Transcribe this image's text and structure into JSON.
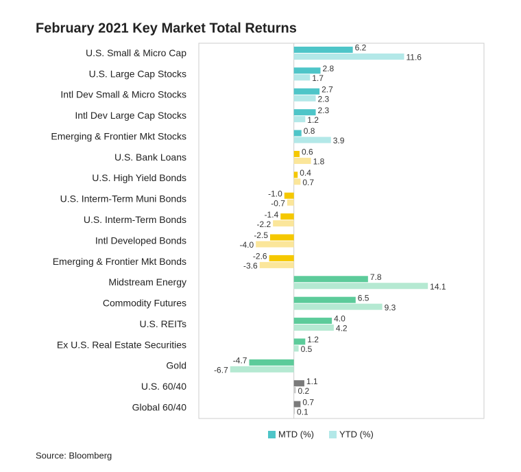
{
  "chart_data": {
    "type": "hbar",
    "title": "February 2021 Key Market Total Returns",
    "categories": [
      "U.S. Small & Micro Cap",
      "U.S. Large Cap Stocks",
      "Intl Dev Small & Micro Stocks",
      "Intl Dev Large Cap Stocks",
      "Emerging & Frontier Mkt Stocks",
      "U.S. Bank Loans",
      "U.S. High Yield Bonds",
      "U.S. Interm-Term Muni Bonds",
      "U.S. Interm-Term Bonds",
      "Intl Developed Bonds",
      "Emerging & Frontier Mkt Bonds",
      "Midstream Energy",
      "Commodity Futures",
      "U.S. REITs",
      "Ex U.S. Real Estate Securities",
      "Gold",
      "U.S. 60/40",
      "Global 60/40"
    ],
    "series": [
      {
        "name": "MTD (%)",
        "color": "#4ec5c8",
        "values": [
          6.2,
          2.8,
          2.7,
          2.3,
          0.8,
          0.6,
          0.4,
          -1.0,
          -1.4,
          -2.5,
          -2.6,
          7.8,
          6.5,
          4.0,
          1.2,
          -4.7,
          1.1,
          0.7
        ],
        "value_labels": [
          "6.2",
          "2.8",
          "2.7",
          "2.3",
          "0.8",
          "0.6",
          "0.4",
          "-1.0",
          "-1.4",
          "-2.5",
          "-2.6",
          "7.8",
          "6.5",
          "4.0",
          "1.2",
          "-4.7",
          "1.1",
          "0.7"
        ],
        "colors": [
          "#4ec5c8",
          "#4ec5c8",
          "#4ec5c8",
          "#4ec5c8",
          "#4ec5c8",
          "#f5c800",
          "#f5c800",
          "#f5c800",
          "#f5c800",
          "#f5c800",
          "#f5c800",
          "#5ccb9a",
          "#5ccb9a",
          "#5ccb9a",
          "#5ccb9a",
          "#5ccb9a",
          "#7a7a7a",
          "#7a7a7a"
        ]
      },
      {
        "name": "YTD (%)",
        "color": "#b3e8e8",
        "values": [
          11.6,
          1.7,
          2.3,
          1.2,
          3.9,
          1.8,
          0.7,
          -0.7,
          -2.2,
          -4.0,
          -3.6,
          14.1,
          9.3,
          4.2,
          0.5,
          -6.7,
          0.2,
          0.1
        ],
        "value_labels": [
          "11.6",
          "1.7",
          "2.3",
          "1.2",
          "3.9",
          "1.8",
          "0.7",
          "-0.7",
          "-2.2",
          "-4.0",
          "-3.6",
          "14.1",
          "9.3",
          "4.2",
          "0.5",
          "-6.7",
          "0.2",
          "0.1"
        ],
        "colors": [
          "#b3e8e8",
          "#b3e8e8",
          "#b3e8e8",
          "#b3e8e8",
          "#b3e8e8",
          "#fbe69a",
          "#fbe69a",
          "#fbe69a",
          "#fbe69a",
          "#fbe69a",
          "#fbe69a",
          "#b5e9d2",
          "#b5e9d2",
          "#b5e9d2",
          "#b5e9d2",
          "#b5e9d2",
          "#c8c8c8",
          "#c8c8c8"
        ]
      }
    ],
    "xlim": [
      -10,
      20
    ],
    "source": "Source: Bloomberg"
  }
}
